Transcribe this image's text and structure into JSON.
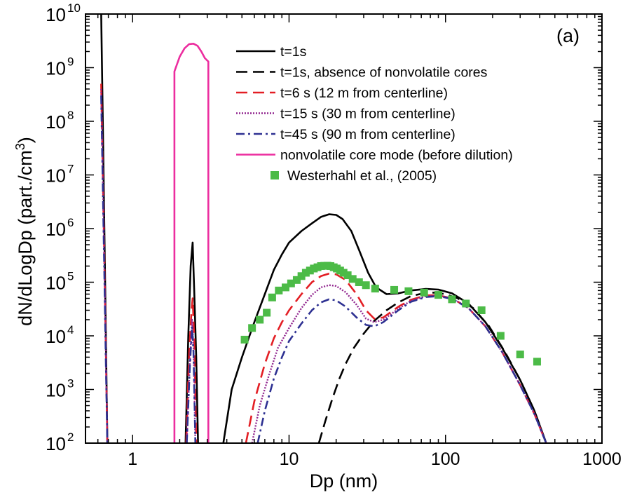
{
  "chart_data": {
    "type": "line",
    "panel_label": "(a)",
    "xlabel": "Dp (nm)",
    "ylabel": {
      "main": "dN/dLogDp (part./cm",
      "sup": "3",
      "close": ")"
    },
    "xscale": "log",
    "yscale": "log",
    "xlim": [
      0.5,
      1000
    ],
    "ylim": [
      100,
      10000000000
    ],
    "x_ticks": [
      {
        "value": 1,
        "label": "1"
      },
      {
        "value": 10,
        "label": "10"
      },
      {
        "value": 100,
        "label": "100"
      },
      {
        "value": 1000,
        "label": "1000"
      }
    ],
    "y_ticks": [
      {
        "value": 100,
        "base": "10",
        "exp": "2"
      },
      {
        "value": 1000,
        "base": "10",
        "exp": "3"
      },
      {
        "value": 10000,
        "base": "10",
        "exp": "4"
      },
      {
        "value": 100000,
        "base": "10",
        "exp": "5"
      },
      {
        "value": 1000000,
        "base": "10",
        "exp": "6"
      },
      {
        "value": 10000000,
        "base": "10",
        "exp": "7"
      },
      {
        "value": 100000000,
        "base": "10",
        "exp": "8"
      },
      {
        "value": 1000000000,
        "base": "10",
        "exp": "9"
      },
      {
        "value": 10000000000,
        "base": "10",
        "exp": "10"
      }
    ],
    "grid": false,
    "legend_position": "top-right",
    "series": [
      {
        "name": "t=1s",
        "color": "#000000",
        "dash": "solid",
        "width": 2.6,
        "segments": [
          [
            [
              0.63,
              10000000000
            ],
            [
              0.645,
              100000000
            ],
            [
              0.66,
              1000000
            ],
            [
              0.675,
              10000
            ],
            [
              0.69,
              100
            ]
          ],
          [
            [
              2.18,
              100
            ],
            [
              2.27,
              10000
            ],
            [
              2.35,
              200000
            ],
            [
              2.42,
              550000
            ],
            [
              2.48,
              60000
            ],
            [
              2.55,
              4000
            ],
            [
              2.62,
              100
            ]
          ],
          [
            [
              3.8,
              100
            ],
            [
              4.3,
              1000
            ],
            [
              5,
              4000
            ],
            [
              6,
              18000
            ],
            [
              7,
              60000
            ],
            [
              8,
              170000
            ],
            [
              9,
              330000
            ],
            [
              10,
              550000
            ],
            [
              12,
              900000
            ],
            [
              14,
              1250000
            ],
            [
              16,
              1650000
            ],
            [
              18,
              1850000
            ],
            [
              20,
              1800000
            ],
            [
              22,
              1500000
            ],
            [
              25,
              900000
            ],
            [
              28,
              400000
            ],
            [
              32,
              150000
            ],
            [
              36,
              80000
            ],
            [
              42,
              60000
            ],
            [
              50,
              62000
            ],
            [
              60,
              70000
            ],
            [
              75,
              75000
            ],
            [
              90,
              73000
            ],
            [
              110,
              62000
            ],
            [
              140,
              40000
            ],
            [
              180,
              18000
            ],
            [
              230,
              6000
            ],
            [
              300,
              1500
            ],
            [
              370,
              400
            ],
            [
              440,
              100
            ]
          ]
        ]
      },
      {
        "name": "t=1s, absence of nonvolatile cores",
        "color": "#000000",
        "dash": "long",
        "width": 2.6,
        "segments": [
          [
            [
              15.5,
              100
            ],
            [
              17,
              250
            ],
            [
              19,
              700
            ],
            [
              21,
              1600
            ],
            [
              23,
              3000
            ],
            [
              26,
              6000
            ],
            [
              30,
              11000
            ],
            [
              35,
              19000
            ],
            [
              42,
              30000
            ],
            [
              50,
              42000
            ],
            [
              60,
              55000
            ],
            [
              72,
              62000
            ],
            [
              85,
              64000
            ],
            [
              100,
              60000
            ],
            [
              120,
              50000
            ],
            [
              150,
              33000
            ],
            [
              190,
              15000
            ],
            [
              240,
              5000
            ],
            [
              300,
              1500
            ],
            [
              370,
              400
            ],
            [
              440,
              100
            ]
          ]
        ]
      },
      {
        "name": "t=6 s (12 m from centerline)",
        "color": "#e31e24",
        "dash": "long",
        "width": 2.6,
        "segments": [
          [
            [
              0.63,
              500000000
            ],
            [
              0.645,
              10000000
            ],
            [
              0.66,
              300000
            ],
            [
              0.675,
              5000
            ],
            [
              0.69,
              100
            ]
          ],
          [
            [
              2.2,
              100
            ],
            [
              2.3,
              5000
            ],
            [
              2.38,
              30000
            ],
            [
              2.42,
              50000
            ],
            [
              2.48,
              8000
            ],
            [
              2.55,
              100
            ]
          ],
          [
            [
              5.3,
              100
            ],
            [
              6,
              600
            ],
            [
              7,
              3000
            ],
            [
              8,
              9000
            ],
            [
              9,
              18000
            ],
            [
              10,
              30000
            ],
            [
              12,
              60000
            ],
            [
              14,
              100000
            ],
            [
              16,
              130000
            ],
            [
              18,
              145000
            ],
            [
              20,
              140000
            ],
            [
              23,
              110000
            ],
            [
              27,
              60000
            ],
            [
              31,
              30000
            ],
            [
              35,
              21000
            ],
            [
              40,
              22000
            ],
            [
              50,
              35000
            ],
            [
              60,
              47000
            ],
            [
              75,
              57000
            ],
            [
              90,
              57000
            ],
            [
              110,
              50000
            ],
            [
              140,
              33000
            ],
            [
              180,
              15000
            ],
            [
              230,
              5000
            ],
            [
              300,
              1200
            ],
            [
              370,
              350
            ],
            [
              440,
              100
            ]
          ]
        ]
      },
      {
        "name": "t=15 s (30 m from centerline)",
        "color": "#92278f",
        "dash": "dotted",
        "width": 2.4,
        "segments": [
          [
            [
              0.63,
              400000000
            ],
            [
              0.645,
              8000000
            ],
            [
              0.66,
              200000
            ],
            [
              0.675,
              4000
            ],
            [
              0.69,
              100
            ]
          ],
          [
            [
              2.22,
              100
            ],
            [
              2.32,
              3000
            ],
            [
              2.4,
              20000
            ],
            [
              2.45,
              6000
            ],
            [
              2.52,
              100
            ]
          ],
          [
            [
              5.8,
              100
            ],
            [
              6.5,
              500
            ],
            [
              7.5,
              2000
            ],
            [
              8.5,
              6000
            ],
            [
              10,
              14000
            ],
            [
              12,
              33000
            ],
            [
              14,
              58000
            ],
            [
              16,
              80000
            ],
            [
              18,
              88000
            ],
            [
              20,
              85000
            ],
            [
              23,
              65000
            ],
            [
              27,
              38000
            ],
            [
              31,
              21000
            ],
            [
              35,
              18000
            ],
            [
              40,
              20000
            ],
            [
              50,
              32000
            ],
            [
              60,
              45000
            ],
            [
              75,
              55000
            ],
            [
              90,
              56000
            ],
            [
              110,
              50000
            ],
            [
              140,
              33000
            ],
            [
              180,
              15000
            ],
            [
              230,
              5000
            ],
            [
              300,
              1200
            ],
            [
              370,
              350
            ],
            [
              440,
              100
            ]
          ]
        ]
      },
      {
        "name": "t=45 s (90 m from centerline)",
        "color": "#2e3192",
        "dash": "dashdot",
        "width": 2.6,
        "segments": [
          [
            [
              0.63,
              300000000
            ],
            [
              0.645,
              6000000
            ],
            [
              0.66,
              150000
            ],
            [
              0.675,
              3000
            ],
            [
              0.69,
              100
            ]
          ],
          [
            [
              2.22,
              100
            ],
            [
              2.32,
              2500
            ],
            [
              2.4,
              15000
            ],
            [
              2.45,
              5000
            ],
            [
              2.52,
              100
            ]
          ],
          [
            [
              6.3,
              100
            ],
            [
              7,
              400
            ],
            [
              8,
              1600
            ],
            [
              9,
              4000
            ],
            [
              10,
              8000
            ],
            [
              12,
              17000
            ],
            [
              14,
              30000
            ],
            [
              16,
              42000
            ],
            [
              18,
              48000
            ],
            [
              20,
              46000
            ],
            [
              23,
              35000
            ],
            [
              27,
              22000
            ],
            [
              31,
              16000
            ],
            [
              35,
              15000
            ],
            [
              40,
              18000
            ],
            [
              50,
              30000
            ],
            [
              60,
              43000
            ],
            [
              75,
              53000
            ],
            [
              90,
              55000
            ],
            [
              110,
              49000
            ],
            [
              140,
              33000
            ],
            [
              180,
              15000
            ],
            [
              230,
              5000
            ],
            [
              300,
              1200
            ],
            [
              370,
              350
            ],
            [
              440,
              100
            ]
          ]
        ]
      },
      {
        "name": "nonvolatile core mode (before dilution)",
        "color": "#ec2d9f",
        "dash": "solid",
        "width": 2.6,
        "segments": [
          [
            [
              1.85,
              100
            ],
            [
              1.85,
              850000000
            ],
            [
              2.0,
              1600000000
            ],
            [
              2.15,
              2300000000
            ],
            [
              2.3,
              2750000000
            ],
            [
              2.45,
              2800000000
            ],
            [
              2.6,
              2550000000
            ],
            [
              2.75,
              2000000000
            ],
            [
              2.9,
              1500000000
            ],
            [
              3.05,
              1300000000
            ],
            [
              3.05,
              100
            ]
          ]
        ]
      }
    ],
    "scatter": {
      "name": "Westerhahl et al., (2005)",
      "color": "#4cbb47",
      "points": [
        [
          5.2,
          8500
        ],
        [
          5.8,
          14000
        ],
        [
          6.5,
          20000
        ],
        [
          7.2,
          27000
        ],
        [
          7.8,
          52000
        ],
        [
          8.6,
          70000
        ],
        [
          9.5,
          80000
        ],
        [
          10.3,
          95000
        ],
        [
          11.2,
          110000
        ],
        [
          12,
          130000
        ],
        [
          12.8,
          150000
        ],
        [
          13.6,
          165000
        ],
        [
          14.4,
          180000
        ],
        [
          15.2,
          190000
        ],
        [
          16,
          200000
        ],
        [
          16.8,
          202000
        ],
        [
          17.6,
          203000
        ],
        [
          18.4,
          200000
        ],
        [
          19.3,
          190000
        ],
        [
          20.2,
          180000
        ],
        [
          21.2,
          165000
        ],
        [
          22.3,
          150000
        ],
        [
          23.7,
          135000
        ],
        [
          25.5,
          115000
        ],
        [
          28,
          100000
        ],
        [
          31,
          88000
        ],
        [
          35.5,
          76000
        ],
        [
          47,
          72000
        ],
        [
          58,
          68000
        ],
        [
          73,
          64000
        ],
        [
          90,
          58000
        ],
        [
          110,
          48000
        ],
        [
          135,
          40000
        ],
        [
          170,
          30000
        ],
        [
          225,
          10000
        ],
        [
          300,
          4500
        ],
        [
          385,
          3300
        ]
      ]
    }
  }
}
